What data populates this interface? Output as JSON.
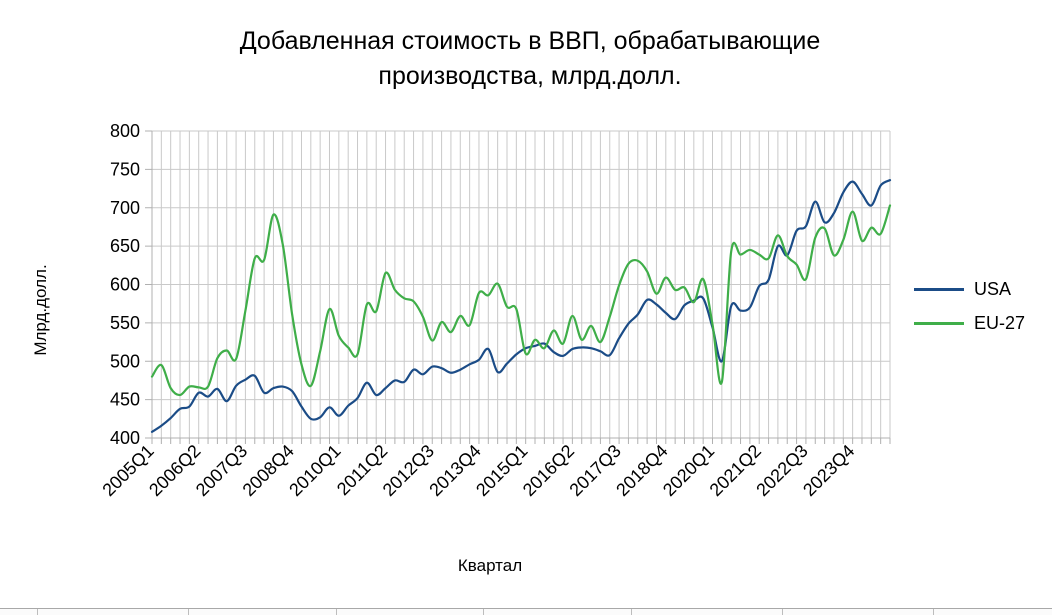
{
  "title": {
    "line1": "Добавленная стоимость в ВВП, обрабатывающие",
    "line2": "производства, млрд.долл."
  },
  "axes": {
    "y_title": "Млрд.долл.",
    "x_title": "Квартал",
    "y_tick_labels": [
      "800",
      "750",
      "700",
      "650",
      "600",
      "550",
      "500",
      "450",
      "400"
    ],
    "x_tick_labels": [
      "2005Q1",
      "2006Q2",
      "2007Q3",
      "2008Q4",
      "2010Q1",
      "2011Q2",
      "2012Q3",
      "2013Q4",
      "2015Q1",
      "2016Q2",
      "2017Q3",
      "2018Q4",
      "2020Q1",
      "2021Q2",
      "2022Q3",
      "2023Q4"
    ]
  },
  "legend": {
    "items": [
      {
        "label": "USA",
        "color": "#1b4c87"
      },
      {
        "label": "EU-27",
        "color": "#3fae49"
      }
    ]
  },
  "colors": {
    "gridline": "#c9c9c9",
    "axis": "#b0b0b0",
    "text": "#000000",
    "background": "#ffffff"
  },
  "chart_data": {
    "type": "line",
    "title": "Добавленная стоимость в ВВП, обрабатывающие производства, млрд.долл.",
    "xlabel": "Квартал",
    "ylabel": "Млрд.долл.",
    "ylim": [
      400,
      800
    ],
    "y_tick_step": 50,
    "x_label_every": 5,
    "grid": true,
    "smooth_lines": true,
    "legend_position": "right",
    "categories": [
      "2005Q1",
      "2005Q2",
      "2005Q3",
      "2005Q4",
      "2006Q1",
      "2006Q2",
      "2006Q3",
      "2006Q4",
      "2007Q1",
      "2007Q2",
      "2007Q3",
      "2007Q4",
      "2008Q1",
      "2008Q2",
      "2008Q3",
      "2008Q4",
      "2009Q1",
      "2009Q2",
      "2009Q3",
      "2009Q4",
      "2010Q1",
      "2010Q2",
      "2010Q3",
      "2010Q4",
      "2011Q1",
      "2011Q2",
      "2011Q3",
      "2011Q4",
      "2012Q1",
      "2012Q2",
      "2012Q3",
      "2012Q4",
      "2013Q1",
      "2013Q2",
      "2013Q3",
      "2013Q4",
      "2014Q1",
      "2014Q2",
      "2014Q3",
      "2014Q4",
      "2015Q1",
      "2015Q2",
      "2015Q3",
      "2015Q4",
      "2016Q1",
      "2016Q2",
      "2016Q3",
      "2016Q4",
      "2017Q1",
      "2017Q2",
      "2017Q3",
      "2017Q4",
      "2018Q1",
      "2018Q2",
      "2018Q3",
      "2018Q4",
      "2019Q1",
      "2019Q2",
      "2019Q3",
      "2019Q4",
      "2020Q1",
      "2020Q2",
      "2020Q3",
      "2020Q4",
      "2021Q1",
      "2021Q2",
      "2021Q3",
      "2021Q4",
      "2022Q1",
      "2022Q2",
      "2022Q3",
      "2022Q4",
      "2023Q1",
      "2023Q2",
      "2023Q3",
      "2023Q4",
      "2024Q1",
      "2024Q2",
      "2024Q3",
      "2024Q4"
    ],
    "series": [
      {
        "name": "USA",
        "color": "#1b4c87",
        "values": [
          408,
          416,
          426,
          438,
          441,
          459,
          454,
          464,
          448,
          468,
          476,
          481,
          459,
          465,
          467,
          461,
          441,
          425,
          427,
          440,
          429,
          442,
          452,
          472,
          456,
          465,
          475,
          473,
          489,
          483,
          493,
          491,
          485,
          489,
          496,
          502,
          516,
          486,
          497,
          509,
          517,
          520,
          523,
          512,
          507,
          516,
          518,
          517,
          513,
          508,
          530,
          549,
          561,
          580,
          574,
          563,
          555,
          573,
          579,
          582,
          544,
          500,
          572,
          566,
          570,
          598,
          606,
          650,
          638,
          670,
          676,
          708,
          681,
          693,
          720,
          734,
          718,
          703,
          729,
          736
        ]
      },
      {
        "name": "EU-27",
        "color": "#3fae49",
        "values": [
          480,
          495,
          465,
          456,
          467,
          466,
          467,
          504,
          514,
          503,
          566,
          634,
          632,
          691,
          652,
          561,
          496,
          468,
          513,
          568,
          533,
          518,
          509,
          574,
          565,
          615,
          593,
          582,
          578,
          558,
          527,
          551,
          538,
          559,
          547,
          589,
          586,
          601,
          571,
          568,
          510,
          528,
          517,
          540,
          523,
          559,
          528,
          546,
          525,
          558,
          599,
          627,
          631,
          617,
          588,
          609,
          593,
          596,
          577,
          607,
          548,
          473,
          643,
          639,
          645,
          639,
          634,
          664,
          637,
          626,
          607,
          661,
          673,
          638,
          658,
          695,
          657,
          674,
          666,
          703
        ]
      }
    ]
  }
}
